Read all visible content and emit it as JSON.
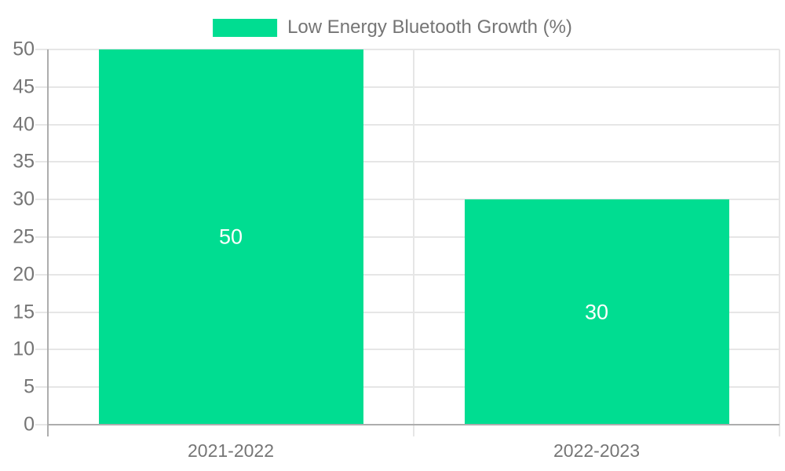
{
  "legend": {
    "label": "Low Energy Bluetooth Growth (%)"
  },
  "chart_data": {
    "type": "bar",
    "title": "Low Energy Bluetooth Growth (%)",
    "categories": [
      "2021-2022",
      "2022-2023"
    ],
    "values": [
      50,
      30
    ],
    "data_labels": [
      "50",
      "30"
    ],
    "yticks": [
      0,
      5,
      10,
      15,
      20,
      25,
      30,
      35,
      40,
      45,
      50
    ],
    "ylim": [
      0,
      50
    ],
    "xlabel": "",
    "ylabel": "",
    "grid": true,
    "legend_position": "top-center",
    "colors": {
      "bar": "#00dd91",
      "legend_swatch": "#00dd91",
      "axis_text": "#757575",
      "data_label_text": "#ffffff",
      "gridline": "#e6e6e6",
      "axis_line": "#adadad",
      "background": "#ffffff"
    }
  }
}
